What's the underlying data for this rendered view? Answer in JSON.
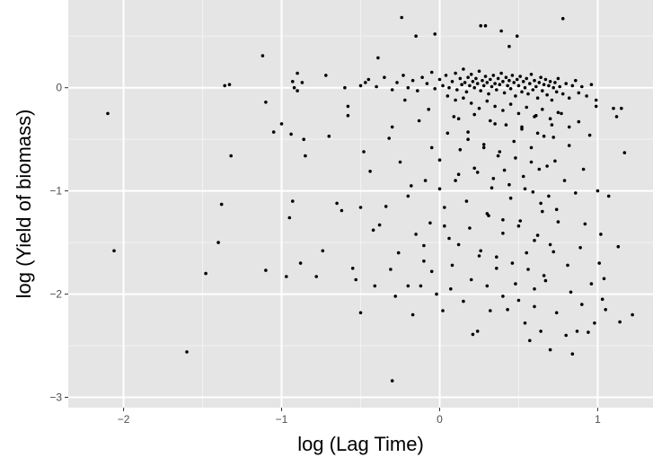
{
  "chart_data": {
    "type": "scatter",
    "title": "",
    "xlabel": "log (Lag Time)",
    "ylabel": "log (Yield of biomass)",
    "xlim": [
      -2.35,
      1.35
    ],
    "ylim": [
      -3.1,
      0.85
    ],
    "x_ticks": [
      -2,
      -1,
      0,
      1
    ],
    "y_ticks": [
      0,
      -1,
      -2,
      -3
    ],
    "x_tick_labels": [
      "−2",
      "−1",
      "0",
      "1"
    ],
    "y_tick_labels": [
      "0",
      "−1",
      "−2",
      "−3"
    ],
    "grid": true,
    "legend": "none",
    "colors": {
      "panel_background": "#e5e5e5",
      "grid_major": "#ffffff",
      "grid_minor": "#f2f2f2",
      "points": "#000000"
    },
    "points": [
      [
        -2.1,
        -0.25
      ],
      [
        -2.06,
        -1.58
      ],
      [
        -1.6,
        -2.56
      ],
      [
        -1.48,
        -1.8
      ],
      [
        -1.4,
        -1.5
      ],
      [
        -1.38,
        -1.13
      ],
      [
        -1.36,
        0.02
      ],
      [
        -1.33,
        0.03
      ],
      [
        -1.32,
        -0.66
      ],
      [
        -1.12,
        0.31
      ],
      [
        -1.1,
        -0.14
      ],
      [
        -1.1,
        -1.77
      ],
      [
        -1.05,
        -0.43
      ],
      [
        -1.0,
        -0.35
      ],
      [
        -0.97,
        -1.83
      ],
      [
        -0.95,
        -1.26
      ],
      [
        -0.94,
        -0.45
      ],
      [
        -0.93,
        -1.1
      ],
      [
        -0.93,
        0.06
      ],
      [
        -0.92,
        0.0
      ],
      [
        -0.9,
        -0.03
      ],
      [
        -0.9,
        0.14
      ],
      [
        -0.88,
        -1.7
      ],
      [
        -0.87,
        0.05
      ],
      [
        -0.86,
        -0.5
      ],
      [
        -0.85,
        -0.66
      ],
      [
        -0.78,
        -1.83
      ],
      [
        -0.74,
        -1.58
      ],
      [
        -0.72,
        0.12
      ],
      [
        -0.7,
        -0.47
      ],
      [
        -0.65,
        -1.12
      ],
      [
        -0.62,
        -1.19
      ],
      [
        -0.6,
        0.0
      ],
      [
        -0.58,
        -0.18
      ],
      [
        -0.58,
        -0.27
      ],
      [
        -0.55,
        -1.75
      ],
      [
        -0.53,
        -1.86
      ],
      [
        -0.5,
        -1.16
      ],
      [
        -0.5,
        -2.18
      ],
      [
        -0.48,
        -0.62
      ],
      [
        -0.47,
        0.05
      ],
      [
        -0.44,
        -0.81
      ],
      [
        -0.42,
        -1.38
      ],
      [
        -0.41,
        -1.92
      ],
      [
        -0.39,
        0.29
      ],
      [
        -0.38,
        -1.33
      ],
      [
        -0.34,
        -1.15
      ],
      [
        -0.32,
        -0.49
      ],
      [
        -0.31,
        -1.76
      ],
      [
        -0.3,
        -2.84
      ],
      [
        -0.28,
        -2.02
      ],
      [
        -0.26,
        -1.6
      ],
      [
        -0.24,
        0.68
      ],
      [
        -0.22,
        -0.12
      ],
      [
        -0.2,
        -1.92
      ],
      [
        -0.18,
        -0.95
      ],
      [
        -0.17,
        -2.2
      ],
      [
        -0.15,
        0.5
      ],
      [
        -0.13,
        -0.32
      ],
      [
        -0.12,
        -1.92
      ],
      [
        -0.1,
        -1.53
      ],
      [
        -0.09,
        -0.9
      ],
      [
        -0.07,
        -0.21
      ],
      [
        -0.06,
        -1.31
      ],
      [
        -0.05,
        -1.78
      ],
      [
        -0.03,
        0.52
      ],
      [
        -0.02,
        -2.0
      ],
      [
        0.0,
        -0.7
      ],
      [
        0.02,
        -2.16
      ],
      [
        0.03,
        -1.16
      ],
      [
        0.05,
        -0.44
      ],
      [
        0.06,
        -1.46
      ],
      [
        0.07,
        -1.95
      ],
      [
        0.09,
        -0.28
      ],
      [
        0.1,
        -0.9
      ],
      [
        0.12,
        -1.52
      ],
      [
        0.13,
        -0.6
      ],
      [
        0.15,
        -2.07
      ],
      [
        0.17,
        -1.1
      ],
      [
        0.18,
        -0.43
      ],
      [
        0.19,
        -1.36
      ],
      [
        0.21,
        -2.39
      ],
      [
        0.22,
        -0.78
      ],
      [
        0.24,
        -2.36
      ],
      [
        0.25,
        -1.63
      ],
      [
        0.26,
        0.6
      ],
      [
        0.28,
        -0.55
      ],
      [
        0.29,
        0.6
      ],
      [
        0.31,
        -1.24
      ],
      [
        0.32,
        -2.16
      ],
      [
        0.33,
        -0.97
      ],
      [
        0.35,
        -0.35
      ],
      [
        0.36,
        -1.75
      ],
      [
        0.37,
        -0.66
      ],
      [
        0.39,
        0.55
      ],
      [
        0.4,
        -1.41
      ],
      [
        0.41,
        -0.8
      ],
      [
        0.43,
        -2.15
      ],
      [
        0.44,
        0.4
      ],
      [
        0.45,
        -1.07
      ],
      [
        0.47,
        -0.52
      ],
      [
        0.48,
        -1.9
      ],
      [
        0.49,
        0.5
      ],
      [
        0.51,
        -1.29
      ],
      [
        0.52,
        -0.38
      ],
      [
        0.53,
        -0.86
      ],
      [
        0.54,
        -2.28
      ],
      [
        0.55,
        -1.6
      ],
      [
        0.57,
        -2.45
      ],
      [
        0.58,
        -0.58
      ],
      [
        0.59,
        -1.01
      ],
      [
        0.6,
        -1.95
      ],
      [
        0.61,
        -0.27
      ],
      [
        0.62,
        -1.43
      ],
      [
        0.63,
        -0.79
      ],
      [
        0.64,
        -2.36
      ],
      [
        0.65,
        -1.2
      ],
      [
        0.66,
        -0.47
      ],
      [
        0.67,
        -1.87
      ],
      [
        0.69,
        -1.05
      ],
      [
        0.7,
        -2.54
      ],
      [
        0.71,
        -0.36
      ],
      [
        0.72,
        -1.59
      ],
      [
        0.73,
        -0.71
      ],
      [
        0.74,
        -2.18
      ],
      [
        0.75,
        -1.3
      ],
      [
        0.77,
        -0.25
      ],
      [
        0.78,
        0.67
      ],
      [
        0.79,
        -0.9
      ],
      [
        0.8,
        -2.4
      ],
      [
        0.81,
        -1.72
      ],
      [
        0.82,
        -0.56
      ],
      [
        0.83,
        -1.98
      ],
      [
        0.84,
        -2.58
      ],
      [
        0.86,
        -1.02
      ],
      [
        0.87,
        -2.36
      ],
      [
        0.88,
        -0.33
      ],
      [
        0.89,
        -1.55
      ],
      [
        0.9,
        -2.1
      ],
      [
        0.91,
        -0.79
      ],
      [
        0.92,
        -1.32
      ],
      [
        0.94,
        -2.37
      ],
      [
        0.95,
        -0.46
      ],
      [
        0.96,
        -1.9
      ],
      [
        0.98,
        -2.28
      ],
      [
        0.99,
        -0.18
      ],
      [
        1.0,
        -1.0
      ],
      [
        1.01,
        -1.7
      ],
      [
        1.02,
        -1.42
      ],
      [
        1.03,
        -2.05
      ],
      [
        1.04,
        -1.85
      ],
      [
        1.05,
        -2.15
      ],
      [
        1.07,
        -1.05
      ],
      [
        1.1,
        -0.2
      ],
      [
        1.12,
        -0.28
      ],
      [
        1.13,
        -1.54
      ],
      [
        1.14,
        -2.27
      ],
      [
        1.15,
        -0.2
      ],
      [
        1.17,
        -0.63
      ],
      [
        1.22,
        -2.2
      ],
      [
        -0.5,
        0.02
      ],
      [
        -0.45,
        0.08
      ],
      [
        -0.4,
        0.01
      ],
      [
        -0.35,
        0.1
      ],
      [
        -0.3,
        -0.02
      ],
      [
        -0.27,
        0.05
      ],
      [
        -0.23,
        0.12
      ],
      [
        -0.2,
        0.0
      ],
      [
        -0.17,
        0.07
      ],
      [
        -0.14,
        -0.03
      ],
      [
        -0.11,
        0.1
      ],
      [
        -0.08,
        0.04
      ],
      [
        -0.05,
        0.15
      ],
      [
        -0.03,
        -0.01
      ],
      [
        0.0,
        0.08
      ],
      [
        0.02,
        0.02
      ],
      [
        0.04,
        0.12
      ],
      [
        0.06,
        0.0
      ],
      [
        0.08,
        0.06
      ],
      [
        0.1,
        0.14
      ],
      [
        0.11,
        -0.02
      ],
      [
        0.13,
        0.09
      ],
      [
        0.14,
        0.03
      ],
      [
        0.15,
        0.18
      ],
      [
        0.16,
        0.05
      ],
      [
        0.17,
        -0.04
      ],
      [
        0.18,
        0.1
      ],
      [
        0.19,
        0.02
      ],
      [
        0.2,
        0.13
      ],
      [
        0.21,
        0.06
      ],
      [
        0.22,
        0.0
      ],
      [
        0.23,
        0.09
      ],
      [
        0.24,
        0.04
      ],
      [
        0.25,
        0.16
      ],
      [
        0.26,
        -0.03
      ],
      [
        0.27,
        0.07
      ],
      [
        0.28,
        0.02
      ],
      [
        0.29,
        0.11
      ],
      [
        0.3,
        0.05
      ],
      [
        0.31,
        -0.06
      ],
      [
        0.32,
        0.08
      ],
      [
        0.33,
        0.01
      ],
      [
        0.34,
        0.12
      ],
      [
        0.35,
        0.04
      ],
      [
        0.36,
        -0.02
      ],
      [
        0.37,
        0.09
      ],
      [
        0.38,
        0.03
      ],
      [
        0.39,
        0.14
      ],
      [
        0.4,
        0.06
      ],
      [
        0.41,
        -0.05
      ],
      [
        0.42,
        0.1
      ],
      [
        0.43,
        0.02
      ],
      [
        0.44,
        0.07
      ],
      [
        0.45,
        -0.01
      ],
      [
        0.46,
        0.12
      ],
      [
        0.47,
        0.05
      ],
      [
        0.48,
        -0.08
      ],
      [
        0.49,
        0.08
      ],
      [
        0.5,
        0.02
      ],
      [
        0.51,
        0.11
      ],
      [
        0.52,
        -0.04
      ],
      [
        0.53,
        0.06
      ],
      [
        0.54,
        0.0
      ],
      [
        0.55,
        0.09
      ],
      [
        0.56,
        -0.06
      ],
      [
        0.57,
        0.04
      ],
      [
        0.58,
        0.13
      ],
      [
        0.59,
        -0.02
      ],
      [
        0.6,
        0.07
      ],
      [
        0.61,
        0.01
      ],
      [
        0.62,
        -0.1
      ],
      [
        0.63,
        0.05
      ],
      [
        0.64,
        0.1
      ],
      [
        0.65,
        -0.03
      ],
      [
        0.66,
        0.03
      ],
      [
        0.67,
        0.08
      ],
      [
        0.68,
        -0.07
      ],
      [
        0.69,
        0.02
      ],
      [
        0.7,
        0.06
      ],
      [
        0.71,
        -0.12
      ],
      [
        0.72,
        0.0
      ],
      [
        0.73,
        0.05
      ],
      [
        0.74,
        -0.04
      ],
      [
        0.75,
        0.09
      ],
      [
        0.76,
        0.01
      ],
      [
        0.78,
        -0.06
      ],
      [
        0.8,
        0.04
      ],
      [
        0.82,
        -0.1
      ],
      [
        0.84,
        0.02
      ],
      [
        0.86,
        0.07
      ],
      [
        0.88,
        -0.05
      ],
      [
        0.9,
        0.01
      ],
      [
        0.93,
        -0.08
      ],
      [
        0.96,
        0.03
      ],
      [
        0.99,
        -0.12
      ],
      [
        0.05,
        -0.08
      ],
      [
        0.1,
        -0.12
      ],
      [
        0.15,
        -0.1
      ],
      [
        0.2,
        -0.15
      ],
      [
        0.25,
        -0.2
      ],
      [
        0.3,
        -0.13
      ],
      [
        0.35,
        -0.18
      ],
      [
        0.4,
        -0.22
      ],
      [
        0.45,
        -0.16
      ],
      [
        0.5,
        -0.25
      ],
      [
        0.55,
        -0.19
      ],
      [
        0.6,
        -0.28
      ],
      [
        0.65,
        -0.21
      ],
      [
        0.7,
        -0.3
      ],
      [
        0.75,
        -0.24
      ],
      [
        0.12,
        -0.3
      ],
      [
        0.22,
        -0.26
      ],
      [
        0.32,
        -0.32
      ],
      [
        0.42,
        -0.36
      ],
      [
        0.52,
        -0.4
      ],
      [
        0.62,
        -0.44
      ],
      [
        0.72,
        -0.48
      ],
      [
        0.82,
        -0.38
      ],
      [
        0.18,
        -0.5
      ],
      [
        0.28,
        -0.58
      ],
      [
        0.38,
        -0.62
      ],
      [
        0.48,
        -0.68
      ],
      [
        0.58,
        -0.72
      ],
      [
        0.68,
        -0.76
      ],
      [
        0.24,
        -0.82
      ],
      [
        0.34,
        -0.88
      ],
      [
        0.44,
        -0.94
      ],
      [
        0.54,
        -0.98
      ],
      [
        0.64,
        -1.12
      ],
      [
        0.74,
        -1.18
      ],
      [
        0.3,
        -1.22
      ],
      [
        0.4,
        -1.28
      ],
      [
        0.5,
        -1.34
      ],
      [
        0.6,
        -1.48
      ],
      [
        0.7,
        -1.52
      ],
      [
        0.26,
        -1.58
      ],
      [
        0.36,
        -1.64
      ],
      [
        0.46,
        -1.7
      ],
      [
        0.56,
        -1.76
      ],
      [
        0.66,
        -1.82
      ],
      [
        0.2,
        -1.86
      ],
      [
        0.3,
        -1.92
      ],
      [
        0.4,
        -2.02
      ],
      [
        0.5,
        -2.06
      ],
      [
        0.6,
        -2.12
      ],
      [
        -0.3,
        -0.38
      ],
      [
        -0.25,
        -0.72
      ],
      [
        -0.2,
        -1.05
      ],
      [
        -0.15,
        -1.42
      ],
      [
        -0.1,
        -1.68
      ],
      [
        -0.05,
        -0.58
      ],
      [
        0.0,
        -0.98
      ],
      [
        0.03,
        -1.34
      ],
      [
        0.08,
        -1.72
      ],
      [
        0.12,
        -0.84
      ]
    ]
  }
}
